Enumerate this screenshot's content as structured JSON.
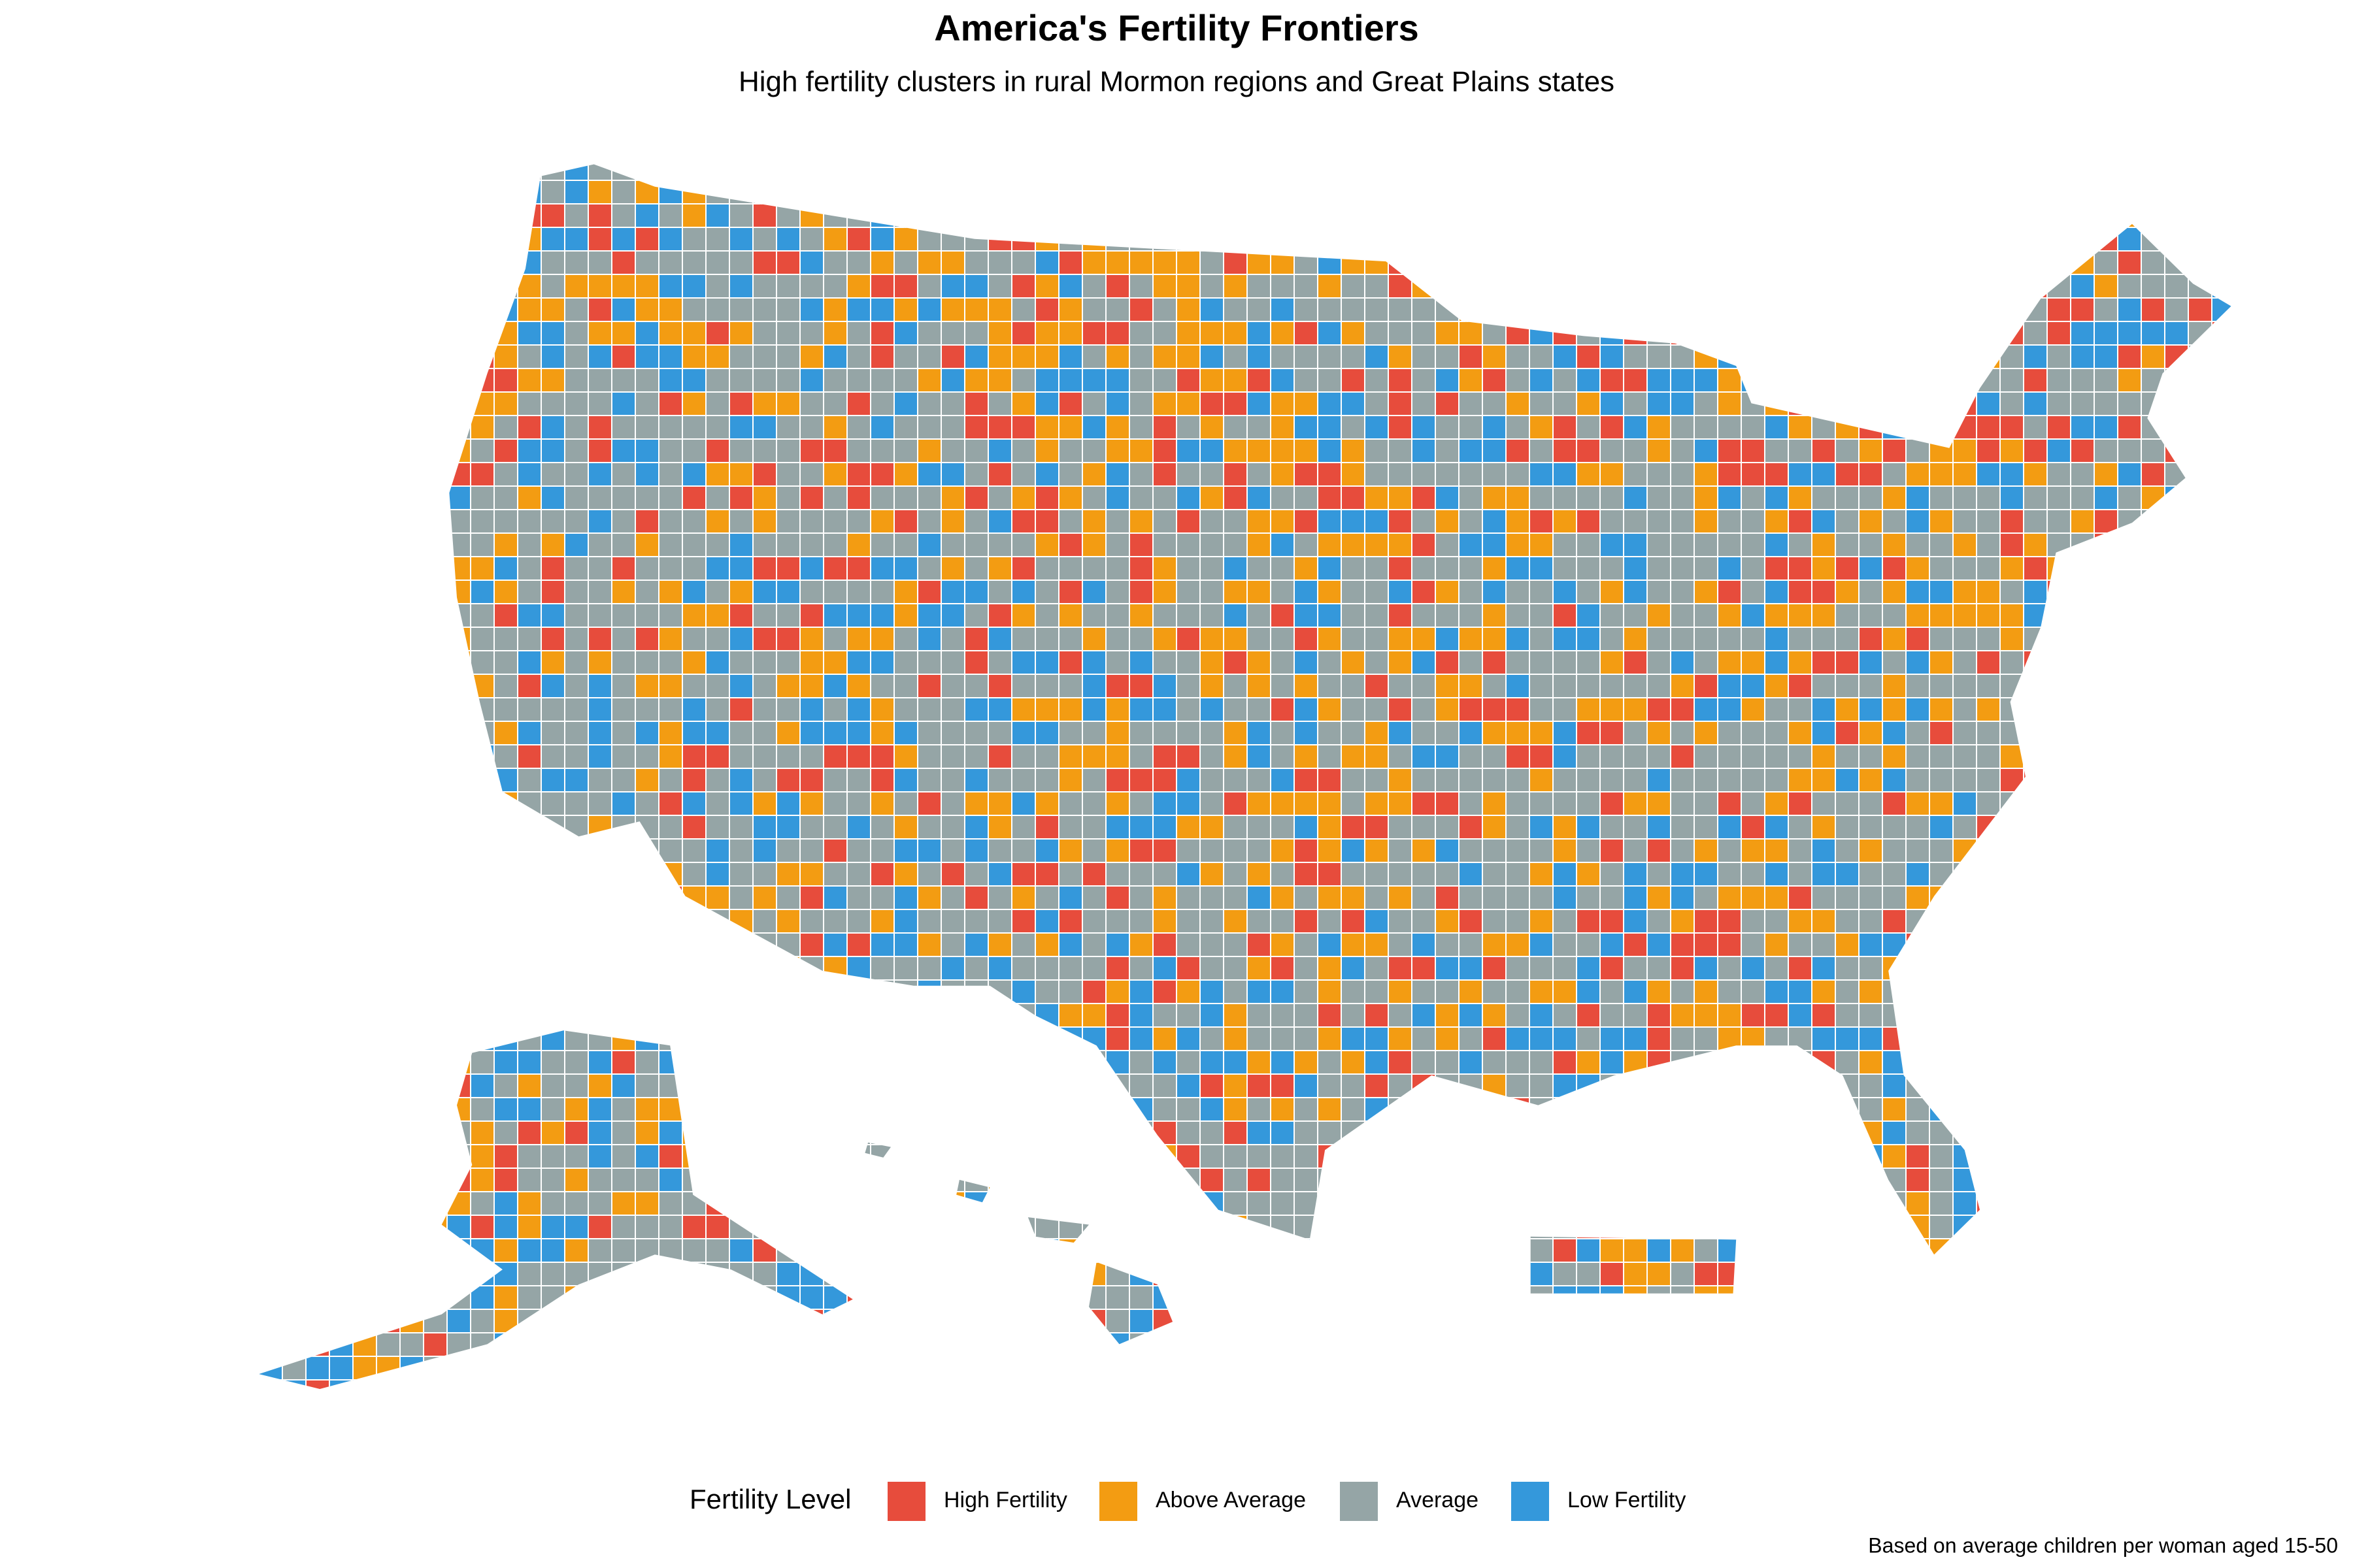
{
  "title": "America's Fertility Frontiers",
  "subtitle": "High fertility clusters in rural Mormon regions and Great Plains states",
  "legend": {
    "title": "Fertility Level",
    "items": [
      {
        "label": "High Fertility",
        "color": "#e74c3c"
      },
      {
        "label": "Above Average",
        "color": "#f39c12"
      },
      {
        "label": "Average",
        "color": "#95a5a6"
      },
      {
        "label": "Low Fertility",
        "color": "#3498db"
      }
    ]
  },
  "caption": "Based on average children per woman aged 15-50"
}
